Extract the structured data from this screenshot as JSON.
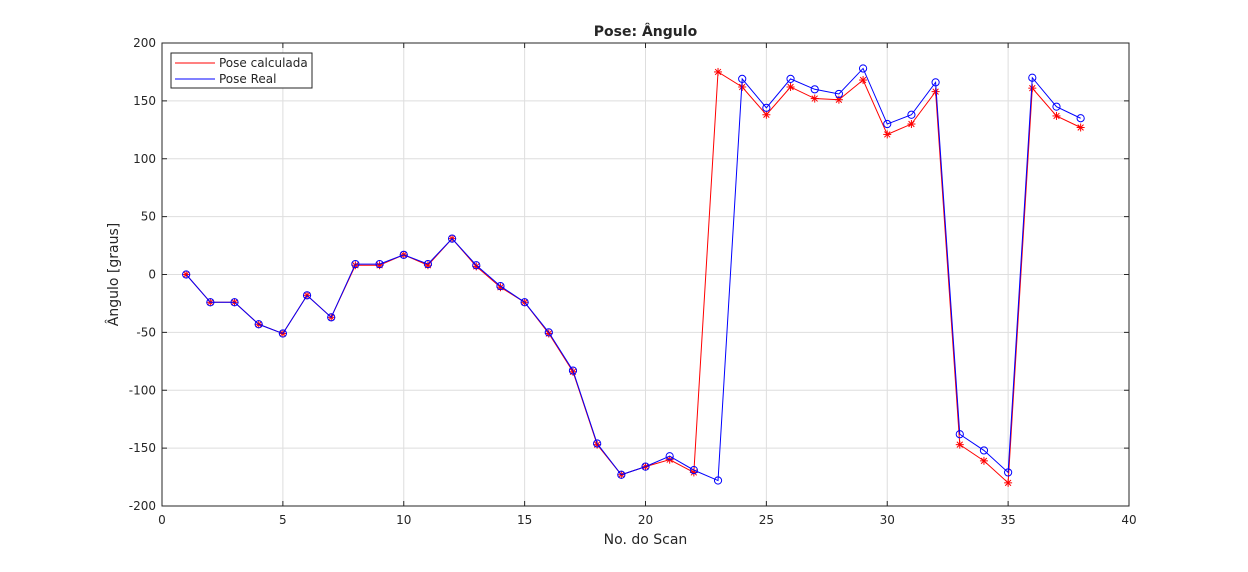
{
  "chart_data": {
    "type": "line",
    "title": "Pose: Ângulo",
    "xlabel": "No. do Scan",
    "ylabel": "Ângulo [graus]",
    "xlim": [
      0,
      40
    ],
    "ylim": [
      -200,
      200
    ],
    "xticks": [
      0,
      5,
      10,
      15,
      20,
      25,
      30,
      35,
      40
    ],
    "yticks": [
      -200,
      -150,
      -100,
      -50,
      0,
      50,
      100,
      150,
      200
    ],
    "grid": true,
    "legend_position": "top-left",
    "x": [
      1,
      2,
      3,
      4,
      5,
      6,
      7,
      8,
      9,
      10,
      11,
      12,
      13,
      14,
      15,
      16,
      17,
      18,
      19,
      20,
      21,
      22,
      23,
      24,
      25,
      26,
      27,
      28,
      29,
      30,
      31,
      32,
      33,
      34,
      35,
      36,
      37,
      38
    ],
    "series": [
      {
        "name": "Pose calculada",
        "color": "#ff0000",
        "marker": "asterisk",
        "values": [
          0,
          -24,
          -24,
          -43,
          -51,
          -18,
          -37,
          8,
          8,
          17,
          8,
          31,
          7,
          -11,
          -24,
          -51,
          -84,
          -147,
          -173,
          -166,
          -160,
          -171,
          175,
          162,
          138,
          162,
          152,
          151,
          168,
          121,
          130,
          158,
          -147,
          -161,
          -180,
          161,
          137,
          127
        ]
      },
      {
        "name": "Pose Real",
        "color": "#0000ff",
        "marker": "circle",
        "values": [
          0,
          -24,
          -24,
          -43,
          -51,
          -18,
          -37,
          9,
          9,
          17,
          9,
          31,
          8,
          -10,
          -24,
          -50,
          -83,
          -146,
          -173,
          -166,
          -157,
          -169,
          -178,
          169,
          144,
          169,
          160,
          156,
          178,
          130,
          138,
          166,
          -138,
          -152,
          -171,
          170,
          145,
          135
        ]
      }
    ]
  }
}
